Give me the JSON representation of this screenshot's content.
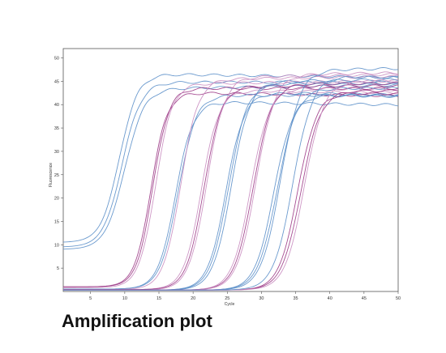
{
  "caption": "Amplification plot",
  "chart_data": {
    "type": "line",
    "title": "",
    "xlabel": "Cycle",
    "ylabel": "Fluorescence",
    "xlim": [
      1,
      50
    ],
    "ylim": [
      0,
      52
    ],
    "x_ticks": [
      5,
      10,
      15,
      20,
      25,
      30,
      35,
      40,
      45,
      50
    ],
    "y_ticks": [
      5,
      10,
      15,
      20,
      25,
      30,
      35,
      40,
      45,
      50
    ],
    "grid": false,
    "legend": "none",
    "colors": {
      "blue": "#5b8fc9",
      "purple": "#9c3a86",
      "light_purple": "#c98cc0",
      "axis": "#555555"
    },
    "series": [
      {
        "color": "blue",
        "baseline": 10.5,
        "plateau": 46.5,
        "midpoint": 9.2,
        "slope": 0.75
      },
      {
        "color": "blue",
        "baseline": 9.5,
        "plateau": 44.8,
        "midpoint": 9.6,
        "slope": 0.72
      },
      {
        "color": "blue",
        "baseline": 9.0,
        "plateau": 43.5,
        "midpoint": 10.0,
        "slope": 0.7
      },
      {
        "color": "purple",
        "baseline": 1.0,
        "plateau": 42.5,
        "midpoint": 13.8,
        "slope": 0.85
      },
      {
        "color": "purple",
        "baseline": 1.0,
        "plateau": 43.5,
        "midpoint": 14.1,
        "slope": 0.85
      },
      {
        "color": "light_purple",
        "baseline": 0.8,
        "plateau": 44.5,
        "midpoint": 14.5,
        "slope": 0.82
      },
      {
        "color": "blue",
        "baseline": 0.5,
        "plateau": 40.5,
        "midpoint": 17.4,
        "slope": 0.78
      },
      {
        "color": "blue",
        "baseline": 0.5,
        "plateau": 42.0,
        "midpoint": 17.8,
        "slope": 0.76
      },
      {
        "color": "light_purple",
        "baseline": 0.4,
        "plateau": 45.5,
        "midpoint": 18.2,
        "slope": 0.78
      },
      {
        "color": "light_purple",
        "baseline": 0.4,
        "plateau": 43.0,
        "midpoint": 21.2,
        "slope": 0.78
      },
      {
        "color": "purple",
        "baseline": 0.4,
        "plateau": 44.0,
        "midpoint": 21.6,
        "slope": 0.78
      },
      {
        "color": "light_purple",
        "baseline": 0.3,
        "plateau": 46.0,
        "midpoint": 22.0,
        "slope": 0.76
      },
      {
        "color": "blue",
        "baseline": 0.3,
        "plateau": 42.5,
        "midpoint": 24.8,
        "slope": 0.75
      },
      {
        "color": "blue",
        "baseline": 0.3,
        "plateau": 44.5,
        "midpoint": 25.2,
        "slope": 0.74
      },
      {
        "color": "blue",
        "baseline": 0.3,
        "plateau": 45.0,
        "midpoint": 25.6,
        "slope": 0.74
      },
      {
        "color": "light_purple",
        "baseline": 0.3,
        "plateau": 43.5,
        "midpoint": 28.4,
        "slope": 0.74
      },
      {
        "color": "purple",
        "baseline": 0.3,
        "plateau": 44.5,
        "midpoint": 28.8,
        "slope": 0.73
      },
      {
        "color": "light_purple",
        "baseline": 0.3,
        "plateau": 46.5,
        "midpoint": 29.2,
        "slope": 0.72
      },
      {
        "color": "blue",
        "baseline": 0.3,
        "plateau": 42.0,
        "midpoint": 31.8,
        "slope": 0.72
      },
      {
        "color": "blue",
        "baseline": 0.3,
        "plateau": 43.5,
        "midpoint": 32.3,
        "slope": 0.7
      },
      {
        "color": "blue",
        "baseline": 0.3,
        "plateau": 47.5,
        "midpoint": 32.8,
        "slope": 0.7
      },
      {
        "color": "purple",
        "baseline": 0.3,
        "plateau": 42.5,
        "midpoint": 35.3,
        "slope": 0.72
      },
      {
        "color": "purple",
        "baseline": 0.3,
        "plateau": 43.0,
        "midpoint": 35.8,
        "slope": 0.7
      },
      {
        "color": "light_purple",
        "baseline": 0.3,
        "plateau": 45.0,
        "midpoint": 36.3,
        "slope": 0.7
      },
      {
        "color": "blue",
        "baseline": 0.3,
        "plateau": 46.0,
        "midpoint": 34.6,
        "slope": 0.7
      }
    ]
  }
}
